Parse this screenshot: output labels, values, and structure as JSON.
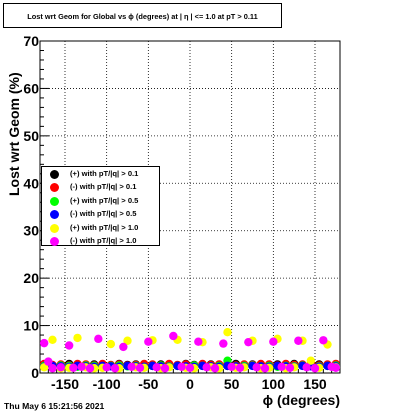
{
  "title": "Lost wrt Geom for Global vs ϕ (degrees) at | η | <= 1.0 at pT > 0.11",
  "footer": "Thu May  6 15:21:56 2021",
  "chart_data": {
    "type": "scatter",
    "title": "Lost wrt Geom for Global vs ϕ (degrees) at | η | <= 1.0 at pT > 0.11",
    "xlabel": "ϕ (degrees)",
    "ylabel": "Lost wrt Geom (%)",
    "xlim": [
      -180,
      180
    ],
    "ylim": [
      0,
      70
    ],
    "x_ticks": [
      -150,
      -100,
      -50,
      0,
      50,
      100,
      150
    ],
    "y_ticks": [
      0,
      10,
      20,
      30,
      40,
      50,
      60,
      70
    ],
    "grid": true,
    "legend_position": "center-left",
    "series": [
      {
        "name": "(+) with pT/|q| > 0.1",
        "color": "#000000",
        "x": [
          -175,
          -165,
          -155,
          -145,
          -135,
          -125,
          -115,
          -105,
          -95,
          -85,
          -75,
          -65,
          -55,
          -45,
          -35,
          -25,
          -15,
          -5,
          5,
          15,
          25,
          35,
          45,
          55,
          65,
          75,
          85,
          95,
          105,
          115,
          125,
          135,
          145,
          155,
          165,
          175
        ],
        "values": [
          1.8,
          1.6,
          1.7,
          1.9,
          1.5,
          1.6,
          1.8,
          1.7,
          1.6,
          1.9,
          1.7,
          1.8,
          1.6,
          1.5,
          1.8,
          1.7,
          1.6,
          1.9,
          1.7,
          1.6,
          1.8,
          1.7,
          1.5,
          1.9,
          1.6,
          1.8,
          1.7,
          1.6,
          1.8,
          1.7,
          1.9,
          1.6,
          1.7,
          1.8,
          1.6,
          1.7
        ]
      },
      {
        "name": "(-) with pT/|q| > 0.1",
        "color": "#ff0000",
        "x": [
          -175,
          -165,
          -155,
          -145,
          -135,
          -125,
          -115,
          -105,
          -95,
          -85,
          -75,
          -65,
          -55,
          -45,
          -35,
          -25,
          -15,
          -5,
          5,
          15,
          25,
          35,
          45,
          55,
          65,
          75,
          85,
          95,
          105,
          115,
          125,
          135,
          145,
          155,
          165,
          175
        ],
        "values": [
          1.9,
          1.7,
          1.8,
          1.6,
          1.9,
          1.8,
          1.6,
          1.9,
          1.7,
          1.8,
          1.6,
          1.7,
          1.9,
          1.8,
          1.6,
          1.9,
          1.7,
          1.8,
          1.6,
          1.9,
          1.7,
          1.8,
          1.9,
          1.6,
          1.8,
          1.7,
          1.9,
          1.8,
          1.6,
          1.9,
          1.7,
          1.8,
          1.9,
          1.6,
          1.8,
          1.9
        ]
      },
      {
        "name": "(+) with pT/|q| > 0.5",
        "color": "#00ff00",
        "x": [
          -175,
          -165,
          -155,
          -145,
          -135,
          -125,
          -115,
          -105,
          -95,
          -85,
          -75,
          -65,
          -55,
          -45,
          -35,
          -25,
          -15,
          -5,
          5,
          15,
          25,
          35,
          45,
          55,
          65,
          75,
          85,
          95,
          105,
          115,
          125,
          135,
          145,
          155,
          165,
          175
        ],
        "values": [
          1.5,
          1.4,
          1.6,
          1.5,
          1.3,
          1.6,
          1.5,
          1.4,
          1.5,
          1.6,
          1.4,
          1.5,
          1.3,
          1.5,
          1.6,
          1.4,
          1.5,
          1.3,
          1.6,
          1.5,
          1.4,
          1.5,
          2.6,
          1.4,
          1.5,
          1.6,
          1.4,
          1.5,
          1.3,
          1.5,
          1.4,
          1.6,
          1.5,
          1.4,
          1.5,
          1.6
        ]
      },
      {
        "name": "(-) with pT/|q| > 0.5",
        "color": "#0000ff",
        "x": [
          -175,
          -165,
          -155,
          -145,
          -135,
          -125,
          -115,
          -105,
          -95,
          -85,
          -75,
          -65,
          -55,
          -45,
          -35,
          -25,
          -15,
          -5,
          5,
          15,
          25,
          35,
          45,
          55,
          65,
          75,
          85,
          95,
          105,
          115,
          125,
          135,
          145,
          155,
          165,
          175
        ],
        "values": [
          1.3,
          1.5,
          1.4,
          1.3,
          1.5,
          1.4,
          1.3,
          1.5,
          1.4,
          1.3,
          1.5,
          1.4,
          1.3,
          1.5,
          1.4,
          1.3,
          1.5,
          1.4,
          1.3,
          1.5,
          1.4,
          1.3,
          1.5,
          1.4,
          1.3,
          1.5,
          1.4,
          1.3,
          1.5,
          1.4,
          1.3,
          1.5,
          1.4,
          1.3,
          1.5,
          1.4
        ]
      },
      {
        "name": "(+) with pT/|q| > 1.0",
        "color": "#ffff00",
        "x": [
          -175,
          -165,
          -155,
          -145,
          -135,
          -125,
          -115,
          -105,
          -95,
          -85,
          -75,
          -65,
          -55,
          -45,
          -35,
          -25,
          -15,
          -5,
          5,
          15,
          25,
          35,
          45,
          55,
          65,
          75,
          85,
          95,
          105,
          115,
          125,
          135,
          145,
          155,
          165,
          175
        ],
        "values": [
          1.2,
          7.0,
          1.0,
          1.1,
          7.4,
          1.2,
          1.0,
          1.1,
          6.1,
          1.0,
          6.8,
          1.2,
          1.1,
          6.9,
          1.0,
          1.2,
          7.0,
          1.1,
          1.0,
          6.5,
          1.2,
          1.0,
          8.6,
          1.1,
          1.2,
          6.8,
          1.0,
          1.1,
          7.2,
          1.0,
          1.2,
          6.8,
          2.6,
          1.1,
          6.0,
          1.2
        ]
      },
      {
        "name": "(-) with pT/|q| > 1.0",
        "color": "#ff00ff",
        "x": [
          -175,
          -170,
          -165,
          -155,
          -145,
          -140,
          -130,
          -120,
          -110,
          -100,
          -90,
          -80,
          -70,
          -60,
          -50,
          -40,
          -30,
          -20,
          -10,
          0,
          10,
          20,
          30,
          40,
          50,
          60,
          70,
          80,
          90,
          100,
          110,
          120,
          130,
          140,
          150,
          160,
          170,
          175
        ],
        "values": [
          6.3,
          2.4,
          1.0,
          1.2,
          5.8,
          1.1,
          1.3,
          1.0,
          7.2,
          1.2,
          1.0,
          5.5,
          1.3,
          1.1,
          6.6,
          1.2,
          1.0,
          7.8,
          1.3,
          1.1,
          6.6,
          1.2,
          1.0,
          6.2,
          1.3,
          1.1,
          6.5,
          1.2,
          1.0,
          6.6,
          1.3,
          1.1,
          6.8,
          1.2,
          1.0,
          6.9,
          1.3,
          1.1
        ]
      }
    ]
  }
}
